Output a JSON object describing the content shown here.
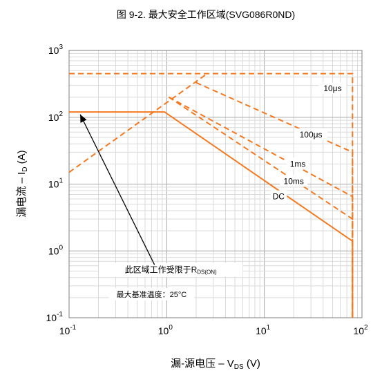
{
  "chart_data": {
    "type": "line",
    "title": "图 9-2. 最大安全工作区域(SVG086R0ND)",
    "xlabel": {
      "main": "漏-源电压 – V",
      "sub": "DS",
      "unit": " (V)"
    },
    "ylabel": {
      "main": "漏电流 – I",
      "sub": "D",
      "unit": " (A)"
    },
    "x_scale": "log",
    "y_scale": "log",
    "xlim": [
      0.1,
      100
    ],
    "ylim": [
      0.1,
      1000
    ],
    "x_ticks": [
      {
        "value": 0.1,
        "base": "10",
        "exp": "-1"
      },
      {
        "value": 1,
        "base": "10",
        "exp": "0"
      },
      {
        "value": 10,
        "base": "10",
        "exp": "1"
      },
      {
        "value": 100,
        "base": "10",
        "exp": "2"
      }
    ],
    "y_ticks": [
      {
        "value": 0.1,
        "base": "10",
        "exp": "-1"
      },
      {
        "value": 1,
        "base": "10",
        "exp": "0"
      },
      {
        "value": 10,
        "base": "10",
        "exp": "1"
      },
      {
        "value": 100,
        "base": "10",
        "exp": "2"
      },
      {
        "value": 1000,
        "base": "10",
        "exp": "3"
      }
    ],
    "grid": true,
    "color": "#f47920",
    "series": [
      {
        "name": "DC",
        "dashed": false,
        "x": [
          0.1,
          0.95,
          80,
          80
        ],
        "y": [
          120,
          120,
          1.4,
          0.1
        ]
      },
      {
        "name": "10ms",
        "dashed": true,
        "x": [
          1.05,
          80,
          80
        ],
        "y": [
          200,
          3.0,
          0.1
        ]
      },
      {
        "name": "1ms",
        "dashed": true,
        "x": [
          1.05,
          80,
          80
        ],
        "y": [
          200,
          6.5,
          0.1
        ]
      },
      {
        "name": "100μs",
        "dashed": true,
        "x": [
          2.0,
          80,
          80
        ],
        "y": [
          330,
          30,
          0.1
        ]
      },
      {
        "name": "10μs",
        "dashed": true,
        "x": [
          0.1,
          2.6,
          80,
          80
        ],
        "y": [
          450,
          450,
          450,
          0.1
        ]
      },
      {
        "name": "",
        "dashed": true,
        "x": [
          0.1,
          2.6
        ],
        "y": [
          15,
          450
        ]
      }
    ],
    "series_labels": [
      {
        "text": "10μs",
        "x": 50,
        "y": 270
      },
      {
        "text": "100μs",
        "x": 30,
        "y": 55
      },
      {
        "text": "1ms",
        "x": 22,
        "y": 20
      },
      {
        "text": "10ms",
        "x": 20,
        "y": 11
      },
      {
        "text": "DC",
        "x": 14,
        "y": 6.5
      }
    ],
    "annotations": {
      "rds_on": {
        "main": "此区域工作受限于R",
        "sub": "DS(ON)",
        "x": 1.1,
        "y": 0.52
      },
      "temp_note": {
        "text": "最大基准温度：25°C",
        "x": 0.7,
        "y": 0.22
      }
    },
    "arrow": {
      "from": [
        0.75,
        0.62
      ],
      "to": [
        0.13,
        110
      ]
    }
  }
}
